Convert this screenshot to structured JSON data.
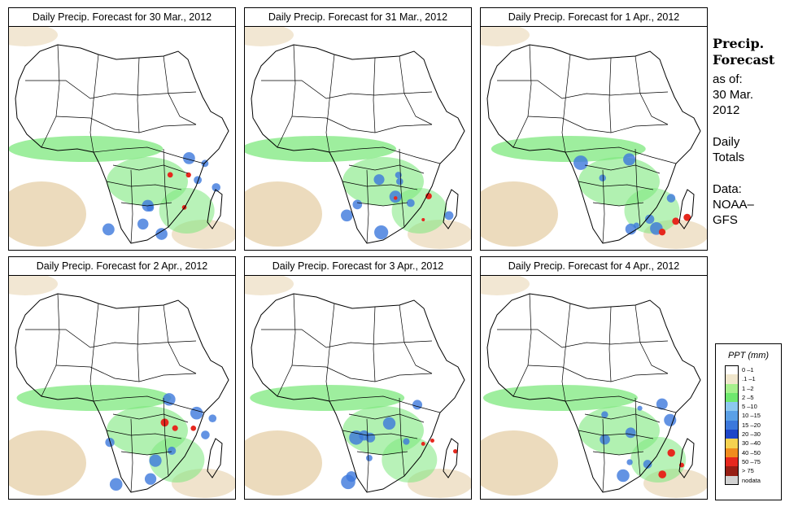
{
  "panels": [
    {
      "title": "Daily Precip. Forecast for  30 Mar., 2012",
      "map_alt": "Africa precipitation forecast map"
    },
    {
      "title": "Daily Precip. Forecast for  31 Mar., 2012",
      "map_alt": "Africa precipitation forecast map"
    },
    {
      "title": "Daily Precip. Forecast for  1 Apr., 2012",
      "map_alt": "Africa precipitation forecast map"
    },
    {
      "title": "Daily Precip. Forecast for  2 Apr., 2012",
      "map_alt": "Africa precipitation forecast map"
    },
    {
      "title": "Daily Precip. Forecast for  3 Apr., 2012",
      "map_alt": "Africa precipitation forecast map"
    },
    {
      "title": "Daily Precip. Forecast for  4 Apr., 2012",
      "map_alt": "Africa precipitation forecast map"
    }
  ],
  "side": {
    "heading_line1": "Precip.",
    "heading_line2": "Forecast",
    "asof": "as of:",
    "date_line1": "30 Mar.",
    "date_line2": "2012",
    "totals_line1": "Daily",
    "totals_line2": "Totals",
    "data_line1": "Data:",
    "data_line2": "NOAA–",
    "data_line3": "GFS"
  },
  "legend": {
    "title": "PPT (mm)",
    "items": [
      {
        "label": "0 –1",
        "color": "#ffffff"
      },
      {
        "label": ".1 –1",
        "color": "#f0e6cc"
      },
      {
        "label": "1 –2",
        "color": "#a6f08c"
      },
      {
        "label": "2 –5",
        "color": "#6ee86e"
      },
      {
        "label": "5 –10",
        "color": "#8cc8f0"
      },
      {
        "label": "10 –15",
        "color": "#5aa0e6"
      },
      {
        "label": "15 –20",
        "color": "#3c78dc"
      },
      {
        "label": "20 –30",
        "color": "#1e46c8"
      },
      {
        "label": "30 –40",
        "color": "#f5d250"
      },
      {
        "label": "40 –50",
        "color": "#f08c1e"
      },
      {
        "label": "50 –75",
        "color": "#e6281e"
      },
      {
        "label": "> 75",
        "color": "#961e14"
      },
      {
        "label": "nodata",
        "color": "#d2d2d2"
      }
    ]
  },
  "colors": {
    "sand": "#ead7b6",
    "green": "#7de87d",
    "blue": "#3c78dc",
    "red": "#e6281e",
    "border": "#000000"
  }
}
